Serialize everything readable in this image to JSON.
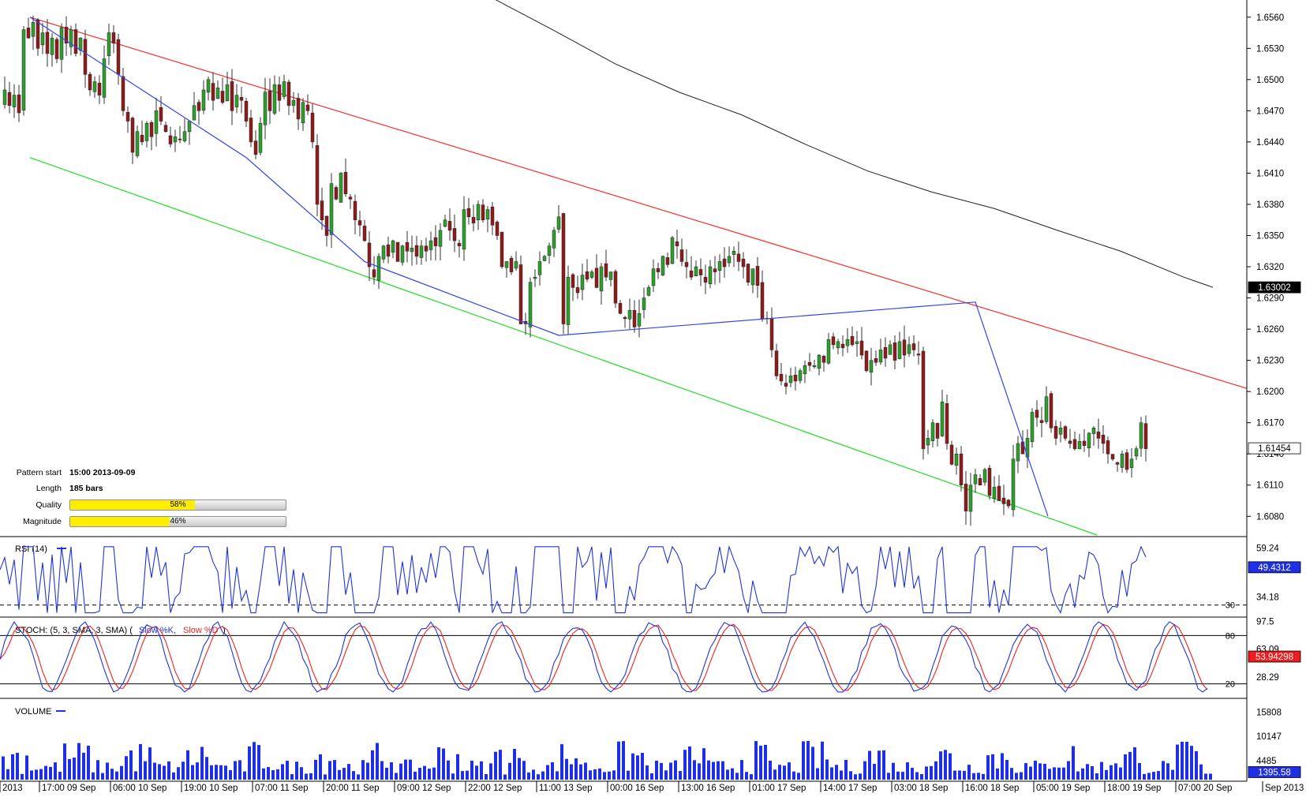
{
  "pattern_info": {
    "start_label": "Pattern start",
    "start_value": "15:00 2013-09-09",
    "length_label": "Length",
    "length_value": "185 bars",
    "quality_label": "Quality",
    "quality_value": 0.58,
    "quality_text": "58%",
    "magnitude_label": "Magnitude",
    "magnitude_value": 0.46,
    "magnitude_text": "46%"
  },
  "colors": {
    "up_candle": "#2e9e2e",
    "down_candle": "#8c1c1c",
    "channel_top": "#ff2a2a",
    "channel_bottom": "#22dd22",
    "pattern_line": "#3344ee",
    "ma_line": "#222222",
    "rsi_line": "#2233dd",
    "stoch_k": "#2233dd",
    "stoch_d": "#ee2222",
    "volume_bar": "#1f2fe6",
    "quality_fill": "#ffee00"
  },
  "chart_data": [
    {
      "type": "candlestick",
      "panel": "price",
      "y_ticks": [
        "1.6560",
        "1.6530",
        "1.6500",
        "1.6470",
        "1.6440",
        "1.6410",
        "1.6380",
        "1.6350",
        "1.6320",
        "1.6290",
        "1.6260",
        "1.6230",
        "1.6200",
        "1.6170",
        "1.6140",
        "1.6110",
        "1.6080"
      ],
      "ylim": [
        1.6062,
        1.6575
      ],
      "current_price_label": "1.61454",
      "current_price": 1.61454,
      "ma_label": "1.63002",
      "ma_value": 1.63002,
      "x_labels": [
        "2013",
        "17:00 09 Sep",
        "06:00 10 Sep",
        "19:00 10 Sep",
        "07:00 11 Sep",
        "20:00 11 Sep",
        "09:00 12 Sep",
        "22:00 12 Sep",
        "11:00 13 Sep",
        "00:00 16 Sep",
        "13:00 16 Sep",
        "01:00 17 Sep",
        "14:00 17 Sep",
        "03:00 18 Sep",
        "16:00 18 Sep",
        "05:00 19 Sep",
        "18:00 19 Sep",
        "07:00 20 Sep",
        "Sep 2013"
      ],
      "ohlc_path": [
        [
          0,
          1.648
        ],
        [
          6,
          1.649
        ],
        [
          12,
          1.6475
        ],
        [
          18,
          1.6485
        ],
        [
          24,
          1.6468
        ],
        [
          30,
          1.6548
        ],
        [
          36,
          1.654
        ],
        [
          42,
          1.6555
        ],
        [
          48,
          1.653
        ],
        [
          54,
          1.6545
        ],
        [
          60,
          1.6525
        ],
        [
          66,
          1.654
        ],
        [
          72,
          1.652
        ],
        [
          78,
          1.655
        ],
        [
          84,
          1.6535
        ],
        [
          90,
          1.6548
        ],
        [
          96,
          1.6525
        ],
        [
          102,
          1.654
        ],
        [
          108,
          1.6505
        ],
        [
          114,
          1.649
        ],
        [
          120,
          1.6498
        ],
        [
          126,
          1.6485
        ],
        [
          132,
          1.652
        ],
        [
          138,
          1.6545
        ],
        [
          144,
          1.6535
        ],
        [
          150,
          1.6505
        ],
        [
          156,
          1.647
        ],
        [
          162,
          1.646
        ],
        [
          168,
          1.643
        ],
        [
          174,
          1.645
        ],
        [
          180,
          1.644
        ],
        [
          186,
          1.6458
        ],
        [
          192,
          1.6445
        ],
        [
          198,
          1.647
        ],
        [
          204,
          1.646
        ],
        [
          210,
          1.645
        ],
        [
          216,
          1.6438
        ],
        [
          222,
          1.6445
        ],
        [
          228,
          1.6442
        ],
        [
          234,
          1.645
        ],
        [
          240,
          1.646
        ],
        [
          246,
          1.6475
        ],
        [
          252,
          1.647
        ],
        [
          258,
          1.649
        ],
        [
          264,
          1.65
        ],
        [
          270,
          1.648
        ],
        [
          276,
          1.6492
        ],
        [
          282,
          1.6478
        ],
        [
          288,
          1.6495
        ],
        [
          294,
          1.647
        ],
        [
          300,
          1.6485
        ],
        [
          306,
          1.648
        ],
        [
          312,
          1.646
        ],
        [
          318,
          1.644
        ],
        [
          324,
          1.6428
        ],
        [
          330,
          1.6458
        ],
        [
          336,
          1.6488
        ],
        [
          342,
          1.647
        ],
        [
          348,
          1.6495
        ],
        [
          354,
          1.648
        ],
        [
          360,
          1.6498
        ],
        [
          366,
          1.6475
        ],
        [
          372,
          1.648
        ],
        [
          378,
          1.6462
        ],
        [
          384,
          1.6478
        ],
        [
          390,
          1.647
        ],
        [
          396,
          1.644
        ],
        [
          402,
          1.638
        ],
        [
          408,
          1.6365
        ],
        [
          414,
          1.635
        ],
        [
          420,
          1.64
        ],
        [
          426,
          1.6385
        ],
        [
          432,
          1.641
        ],
        [
          438,
          1.639
        ],
        [
          444,
          1.6385
        ],
        [
          450,
          1.6365
        ],
        [
          456,
          1.636
        ],
        [
          462,
          1.6345
        ],
        [
          468,
          1.632
        ],
        [
          474,
          1.631
        ],
        [
          480,
          1.633
        ],
        [
          486,
          1.634
        ],
        [
          492,
          1.633
        ],
        [
          498,
          1.6345
        ],
        [
          504,
          1.6325
        ],
        [
          510,
          1.634
        ],
        [
          516,
          1.6335
        ],
        [
          522,
          1.6338
        ],
        [
          528,
          1.633
        ],
        [
          534,
          1.634
        ],
        [
          540,
          1.6335
        ],
        [
          546,
          1.6345
        ],
        [
          552,
          1.634
        ],
        [
          558,
          1.6355
        ],
        [
          564,
          1.6365
        ],
        [
          570,
          1.6355
        ],
        [
          576,
          1.6345
        ],
        [
          582,
          1.634
        ],
        [
          588,
          1.6375
        ],
        [
          594,
          1.6368
        ],
        [
          600,
          1.6362
        ],
        [
          606,
          1.638
        ],
        [
          612,
          1.6365
        ],
        [
          618,
          1.6375
        ],
        [
          624,
          1.636
        ],
        [
          630,
          1.635
        ],
        [
          636,
          1.632
        ],
        [
          642,
          1.6325
        ],
        [
          648,
          1.6315
        ],
        [
          654,
          1.6325
        ],
        [
          660,
          1.6265
        ],
        [
          666,
          1.6265
        ],
        [
          672,
          1.6305
        ],
        [
          678,
          1.631
        ],
        [
          684,
          1.6325
        ],
        [
          690,
          1.633
        ],
        [
          696,
          1.634
        ],
        [
          702,
          1.6355
        ],
        [
          708,
          1.6368
        ],
        [
          714,
          1.6265
        ],
        [
          720,
          1.631
        ],
        [
          726,
          1.63
        ],
        [
          732,
          1.6295
        ],
        [
          738,
          1.6312
        ],
        [
          744,
          1.6308
        ],
        [
          750,
          1.6315
        ],
        [
          756,
          1.63
        ],
        [
          762,
          1.632
        ],
        [
          768,
          1.631
        ],
        [
          774,
          1.6315
        ],
        [
          780,
          1.6285
        ],
        [
          786,
          1.6275
        ],
        [
          792,
          1.627
        ],
        [
          798,
          1.6278
        ],
        [
          804,
          1.6262
        ],
        [
          810,
          1.6275
        ],
        [
          816,
          1.629
        ],
        [
          822,
          1.63
        ],
        [
          828,
          1.6318
        ],
        [
          834,
          1.6315
        ],
        [
          840,
          1.633
        ],
        [
          846,
          1.6322
        ],
        [
          852,
          1.6348
        ],
        [
          858,
          1.634
        ],
        [
          864,
          1.6325
        ],
        [
          870,
          1.632
        ],
        [
          876,
          1.631
        ],
        [
          882,
          1.632
        ],
        [
          888,
          1.6312
        ],
        [
          894,
          1.6305
        ],
        [
          900,
          1.632
        ],
        [
          906,
          1.6315
        ],
        [
          912,
          1.6325
        ],
        [
          918,
          1.632
        ],
        [
          924,
          1.633
        ],
        [
          930,
          1.6335
        ],
        [
          936,
          1.6325
        ],
        [
          942,
          1.632
        ],
        [
          948,
          1.6305
        ],
        [
          954,
          1.6318
        ],
        [
          960,
          1.6302
        ],
        [
          966,
          1.627
        ],
        [
          972,
          1.627
        ],
        [
          978,
          1.624
        ],
        [
          984,
          1.6215
        ],
        [
          990,
          1.621
        ],
        [
          996,
          1.6205
        ],
        [
          1002,
          1.6215
        ],
        [
          1008,
          1.621
        ],
        [
          1014,
          1.622
        ],
        [
          1020,
          1.6225
        ],
        [
          1026,
          1.6225
        ],
        [
          1032,
          1.6225
        ],
        [
          1038,
          1.6235
        ],
        [
          1044,
          1.6228
        ],
        [
          1050,
          1.625
        ],
        [
          1056,
          1.6245
        ],
        [
          1062,
          1.6248
        ],
        [
          1068,
          1.6242
        ],
        [
          1074,
          1.625
        ],
        [
          1080,
          1.6245
        ],
        [
          1086,
          1.6248
        ],
        [
          1092,
          1.6235
        ],
        [
          1098,
          1.622
        ],
        [
          1104,
          1.623
        ],
        [
          1110,
          1.6228
        ],
        [
          1116,
          1.624
        ],
        [
          1122,
          1.6232
        ],
        [
          1128,
          1.6245
        ],
        [
          1134,
          1.623
        ],
        [
          1140,
          1.6248
        ],
        [
          1146,
          1.6235
        ],
        [
          1152,
          1.6245
        ],
        [
          1158,
          1.624
        ],
        [
          1164,
          1.6235
        ],
        [
          1170,
          1.6145
        ],
        [
          1176,
          1.6155
        ],
        [
          1182,
          1.617
        ],
        [
          1188,
          1.6155
        ],
        [
          1194,
          1.619
        ],
        [
          1200,
          1.615
        ],
        [
          1206,
          1.613
        ],
        [
          1212,
          1.614
        ],
        [
          1218,
          1.611
        ],
        [
          1224,
          1.6085
        ],
        [
          1230,
          1.611
        ],
        [
          1236,
          1.612
        ],
        [
          1242,
          1.611
        ],
        [
          1248,
          1.6125
        ],
        [
          1254,
          1.61
        ],
        [
          1260,
          1.6108
        ],
        [
          1266,
          1.6095
        ],
        [
          1272,
          1.6092
        ],
        [
          1278,
          1.609
        ],
        [
          1284,
          1.6135
        ],
        [
          1290,
          1.615
        ],
        [
          1296,
          1.614
        ],
        [
          1302,
          1.6155
        ],
        [
          1308,
          1.618
        ],
        [
          1314,
          1.6175
        ],
        [
          1320,
          1.617
        ],
        [
          1326,
          1.6195
        ],
        [
          1332,
          1.6165
        ],
        [
          1338,
          1.6155
        ],
        [
          1344,
          1.6165
        ],
        [
          1350,
          1.6155
        ],
        [
          1356,
          1.615
        ],
        [
          1362,
          1.6145
        ],
        [
          1368,
          1.6152
        ],
        [
          1374,
          1.6148
        ],
        [
          1380,
          1.616
        ],
        [
          1386,
          1.6165
        ],
        [
          1392,
          1.6155
        ],
        [
          1398,
          1.615
        ],
        [
          1404,
          1.614
        ],
        [
          1410,
          1.6135
        ],
        [
          1416,
          1.613
        ],
        [
          1422,
          1.614
        ],
        [
          1428,
          1.6125
        ],
        [
          1434,
          1.6135
        ],
        [
          1440,
          1.6145
        ],
        [
          1446,
          1.617
        ],
        [
          1452,
          1.6145
        ]
      ]
    },
    {
      "type": "line",
      "panel": "rsi",
      "name": "RSI (14)",
      "y_ticks": [
        "59.24",
        "48.71",
        "34.18"
      ],
      "level_label": "30",
      "level": 30,
      "ylim": [
        25,
        64
      ],
      "current_label": "49.4312",
      "current_value": 49.4312
    },
    {
      "type": "line",
      "panel": "stochastic",
      "name": "STOCH: (5, 3, SMA, 3, SMA)",
      "series": [
        {
          "name": "Slow %K"
        },
        {
          "name": "Slow %D"
        }
      ],
      "y_ticks": [
        "97.5",
        "63.09",
        "28.29"
      ],
      "levels": [
        {
          "label": "80",
          "value": 80
        },
        {
          "label": "20",
          "value": 20
        }
      ],
      "ylim": [
        5,
        100
      ],
      "current_label": "53.94298",
      "current_value": 53.94298
    },
    {
      "type": "bar",
      "panel": "volume",
      "name": "VOLUME",
      "y_ticks": [
        "15808",
        "10147",
        "4485"
      ],
      "ylim": [
        0,
        18500
      ],
      "current_label": "1395.58",
      "current_value": 1395.58
    }
  ]
}
